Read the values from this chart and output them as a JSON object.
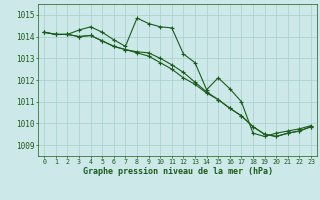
{
  "title": "Graphe pression niveau de la mer (hPa)",
  "bg_color": "#cce8e8",
  "grid_color": "#aacece",
  "line_color": "#1a5c1a",
  "xlim": [
    -0.5,
    23.5
  ],
  "ylim": [
    1008.5,
    1015.5
  ],
  "yticks": [
    1009,
    1010,
    1011,
    1012,
    1013,
    1014,
    1015
  ],
  "xticks": [
    0,
    1,
    2,
    3,
    4,
    5,
    6,
    7,
    8,
    9,
    10,
    11,
    12,
    13,
    14,
    15,
    16,
    17,
    18,
    19,
    20,
    21,
    22,
    23
  ],
  "series": [
    [
      1014.2,
      1014.1,
      1014.1,
      1014.3,
      1014.45,
      1014.2,
      1013.85,
      1013.55,
      1014.85,
      1014.6,
      1014.45,
      1014.4,
      1013.2,
      1012.8,
      1011.55,
      1012.1,
      1011.6,
      1011.0,
      1009.55,
      1009.4,
      1009.55,
      1009.65,
      1009.75,
      1009.9
    ],
    [
      1014.2,
      1014.1,
      1014.1,
      1014.0,
      1014.05,
      1013.8,
      1013.55,
      1013.4,
      1013.3,
      1013.25,
      1013.0,
      1012.7,
      1012.35,
      1011.9,
      1011.45,
      1011.1,
      1010.7,
      1010.35,
      1009.85,
      1009.5,
      1009.4,
      1009.55,
      1009.65,
      1009.85
    ],
    [
      1014.2,
      1014.1,
      1014.1,
      1014.0,
      1014.05,
      1013.8,
      1013.55,
      1013.4,
      1013.25,
      1013.1,
      1012.8,
      1012.5,
      1012.1,
      1011.8,
      1011.4,
      1011.1,
      1010.7,
      1010.35,
      1009.85,
      1009.5,
      1009.4,
      1009.55,
      1009.65,
      1009.85
    ]
  ],
  "xlabel_fontsize": 6.0,
  "ytick_fontsize": 5.5,
  "xtick_fontsize": 4.8
}
